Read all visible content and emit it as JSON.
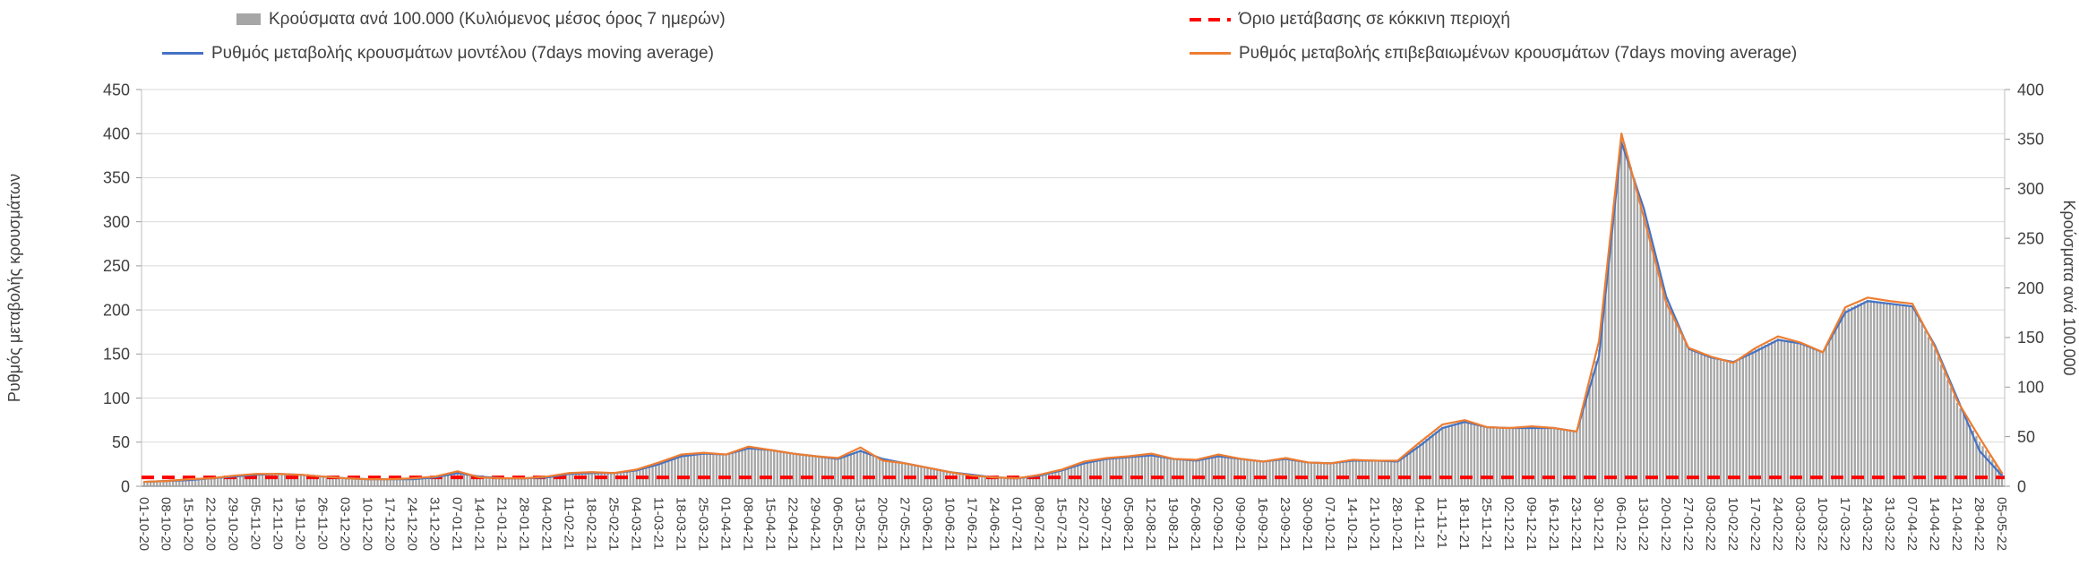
{
  "chart_data": {
    "type": "bar",
    "title": "",
    "legend_position": "top",
    "grid": true,
    "left_axis": {
      "title": "Ρυθμός μεταβολής κρουσμάτων",
      "min": 0,
      "max": 450,
      "step": 50
    },
    "right_axis": {
      "title": "Κρούσματα ανά 100.000",
      "min": 0,
      "max": 400,
      "step": 50
    },
    "threshold": {
      "label": "Όριο μετάβασης σε κόκκινη περιοχή",
      "value": 10,
      "axis": "left",
      "color": "#FF0000",
      "style": "dashed"
    },
    "categories": [
      "01-10-20",
      "08-10-20",
      "15-10-20",
      "22-10-20",
      "29-10-20",
      "05-11-20",
      "12-11-20",
      "19-11-20",
      "26-11-20",
      "03-12-20",
      "10-12-20",
      "17-12-20",
      "24-12-20",
      "31-12-20",
      "07-01-21",
      "14-01-21",
      "21-01-21",
      "28-01-21",
      "04-02-21",
      "11-02-21",
      "18-02-21",
      "25-02-21",
      "04-03-21",
      "11-03-21",
      "18-03-21",
      "25-03-21",
      "01-04-21",
      "08-04-21",
      "15-04-21",
      "22-04-21",
      "29-04-21",
      "06-05-21",
      "13-05-21",
      "20-05-21",
      "27-05-21",
      "03-06-21",
      "10-06-21",
      "17-06-21",
      "24-06-21",
      "01-07-21",
      "08-07-21",
      "15-07-21",
      "22-07-21",
      "29-07-21",
      "05-08-21",
      "12-08-21",
      "19-08-21",
      "26-08-21",
      "02-09-21",
      "09-09-21",
      "16-09-21",
      "23-09-21",
      "30-09-21",
      "07-10-21",
      "14-10-21",
      "21-10-21",
      "28-10-21",
      "04-11-21",
      "11-11-21",
      "18-11-21",
      "25-11-21",
      "02-12-21",
      "09-12-21",
      "16-12-21",
      "23-12-21",
      "30-12-21",
      "06-01-22",
      "13-01-22",
      "20-01-22",
      "27-01-22",
      "03-02-22",
      "10-02-22",
      "17-02-22",
      "24-02-22",
      "03-03-22",
      "10-03-22",
      "17-03-22",
      "24-03-22",
      "31-03-22",
      "07-04-22",
      "14-04-22",
      "21-04-22",
      "28-04-22",
      "05-05-22"
    ],
    "series": [
      {
        "id": "cases-per-100k",
        "name": "Κρούσματα ανά 100.000 (Κυλιόμενος μέσος όρος 7 ημερών)",
        "type": "bar",
        "axis": "right",
        "color": "#A6A6A6",
        "values": [
          4,
          5,
          6,
          8,
          10,
          12,
          12,
          12,
          10,
          8,
          7,
          7,
          7,
          9,
          14,
          9,
          8,
          8,
          9,
          12,
          14,
          13,
          16,
          23,
          31,
          33,
          32,
          39,
          36,
          33,
          30,
          28,
          37,
          27,
          23,
          19,
          14,
          11,
          9,
          8,
          11,
          16,
          24,
          28,
          29,
          32,
          28,
          26,
          31,
          28,
          25,
          28,
          24,
          23,
          26,
          26,
          25,
          43,
          60,
          66,
          60,
          59,
          60,
          59,
          55,
          138,
          356,
          276,
          187,
          138,
          129,
          124,
          138,
          149,
          144,
          135,
          178,
          188,
          185,
          182,
          138,
          84,
          45,
          13
        ]
      },
      {
        "id": "model",
        "name": "Ρυθμός μεταβολής κρουσμάτων μοντέλου (7days moving average)",
        "type": "line",
        "axis": "left",
        "color": "#4472C4",
        "values": [
          5,
          6,
          7,
          9,
          11,
          13,
          14,
          13,
          11,
          9,
          8,
          8,
          8,
          10,
          15,
          11,
          9,
          9,
          10,
          14,
          15,
          15,
          18,
          25,
          34,
          37,
          36,
          43,
          41,
          37,
          34,
          31,
          40,
          31,
          26,
          21,
          16,
          13,
          10,
          9,
          12,
          18,
          26,
          31,
          33,
          35,
          31,
          29,
          34,
          31,
          28,
          31,
          27,
          26,
          29,
          29,
          28,
          46,
          66,
          73,
          67,
          66,
          66,
          66,
          62,
          148,
          390,
          315,
          215,
          156,
          146,
          141,
          153,
          166,
          162,
          152,
          197,
          210,
          207,
          204,
          160,
          100,
          40,
          12
        ]
      },
      {
        "id": "confirmed",
        "name": "Ρυθμός μεταβολής επιβεβαιωμένων κρουσμάτων (7days moving average)",
        "type": "line",
        "axis": "left",
        "color": "#ED7D31",
        "values": [
          5,
          6,
          8,
          9,
          12,
          14,
          14,
          13,
          11,
          9,
          8,
          8,
          9,
          11,
          17,
          10,
          9,
          9,
          11,
          15,
          16,
          15,
          19,
          27,
          36,
          38,
          36,
          45,
          41,
          37,
          34,
          32,
          44,
          29,
          26,
          21,
          16,
          12,
          10,
          9,
          13,
          19,
          28,
          32,
          34,
          37,
          31,
          30,
          36,
          31,
          28,
          32,
          27,
          26,
          30,
          29,
          29,
          50,
          70,
          75,
          67,
          66,
          68,
          66,
          62,
          165,
          400,
          305,
          208,
          157,
          147,
          140,
          157,
          170,
          163,
          152,
          203,
          214,
          210,
          207,
          158,
          97,
          55,
          15
        ]
      }
    ]
  }
}
